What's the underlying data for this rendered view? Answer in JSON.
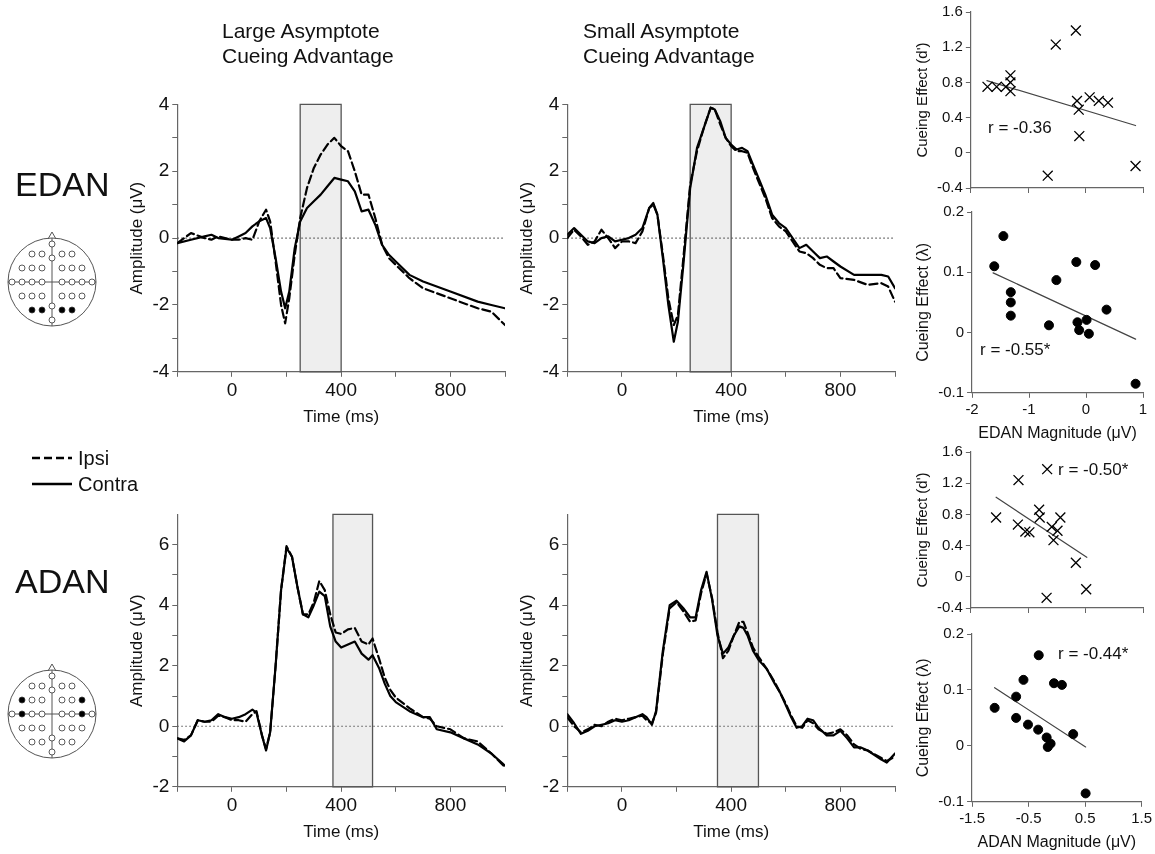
{
  "chart_data": [
    {
      "type": "line",
      "title": "Large Asymptote Cueing Advantage",
      "xlabel": "Time (ms)",
      "ylabel": "Amplitude (μV)",
      "annotations": [
        "EDAN"
      ],
      "legend": "bottom left",
      "marker": "none",
      "x": [
        -200,
        -150,
        -100,
        -75,
        -50,
        0,
        25,
        50,
        75,
        100,
        125,
        140,
        160,
        180,
        195,
        210,
        230,
        250,
        275,
        300,
        325,
        350,
        375,
        400,
        425,
        450,
        475,
        500,
        525,
        550,
        575,
        600,
        650,
        700,
        800,
        900,
        950,
        1000
      ],
      "series": [
        {
          "name": "Ipsi",
          "color": "#000000",
          "line_style": "dashed",
          "values": [
            -0.15,
            0.15,
            0.0,
            -0.05,
            0.05,
            -0.05,
            -0.05,
            0.0,
            -0.05,
            0.5,
            0.85,
            0.5,
            -0.7,
            -2.0,
            -2.55,
            -1.8,
            -0.5,
            0.6,
            1.5,
            2.1,
            2.5,
            2.8,
            3.0,
            2.75,
            2.6,
            2.0,
            1.3,
            1.3,
            0.6,
            -0.2,
            -0.6,
            -0.8,
            -1.2,
            -1.5,
            -1.8,
            -2.1,
            -2.2,
            -2.6
          ]
        },
        {
          "name": "Contra",
          "color": "#000000",
          "line_style": "solid",
          "values": [
            -0.15,
            -0.05,
            0.05,
            0.1,
            0.0,
            -0.05,
            0.05,
            0.15,
            0.35,
            0.5,
            0.6,
            0.3,
            -0.6,
            -1.6,
            -2.1,
            -1.6,
            -0.3,
            0.5,
            0.9,
            1.1,
            1.3,
            1.55,
            1.8,
            1.75,
            1.7,
            1.4,
            0.8,
            0.85,
            0.4,
            -0.2,
            -0.5,
            -0.7,
            -1.1,
            -1.3,
            -1.6,
            -1.9,
            -2.0,
            -2.1
          ]
        }
      ],
      "xlim": [
        -200,
        1000
      ],
      "xticks": [
        {
          "value": -200,
          "label": null
        },
        0,
        {
          "value": 200,
          "label": null
        },
        400,
        {
          "value": 600,
          "label": null
        },
        800,
        {
          "value": 1000,
          "label": null
        }
      ],
      "ylim": [
        -4,
        4
      ],
      "yticks": [
        -4,
        {
          "value": -3,
          "label": null
        },
        -2,
        {
          "value": -1,
          "label": null
        },
        0,
        {
          "value": 1,
          "label": null
        },
        2,
        {
          "value": 3,
          "label": null
        },
        4
      ],
      "bands": [
        {
          "axis": "x",
          "from": 250,
          "to": 400,
          "color": "#555555"
        }
      ],
      "ref_lines": [
        {
          "axis": "y",
          "value": 0,
          "line_style": "dotted",
          "color": "#555555"
        }
      ]
    },
    {
      "type": "line",
      "title": "Small Asymptote Cueing Advantage",
      "xlabel": "Time (ms)",
      "ylabel": "Amplitude (μV)",
      "marker": "none",
      "x": [
        -200,
        -175,
        -150,
        -125,
        -100,
        -75,
        -50,
        -25,
        0,
        25,
        50,
        75,
        100,
        115,
        130,
        150,
        170,
        190,
        205,
        225,
        250,
        275,
        300,
        325,
        340,
        360,
        380,
        400,
        420,
        440,
        460,
        480,
        500,
        525,
        550,
        575,
        600,
        625,
        650,
        675,
        700,
        725,
        750,
        775,
        800,
        850,
        900,
        950,
        975,
        1000
      ],
      "series": [
        {
          "color": "#000000",
          "line_style": "dashed",
          "values": [
            0.0,
            0.25,
            0.05,
            -0.2,
            -0.1,
            0.25,
            0.0,
            -0.3,
            -0.1,
            -0.1,
            -0.15,
            0.2,
            0.9,
            1.0,
            0.7,
            -0.5,
            -1.8,
            -2.6,
            -2.3,
            -0.6,
            1.6,
            2.6,
            3.3,
            3.9,
            3.85,
            3.4,
            3.0,
            2.75,
            2.6,
            2.6,
            2.55,
            2.1,
            1.7,
            1.2,
            0.6,
            0.35,
            0.2,
            -0.1,
            -0.4,
            -0.45,
            -0.6,
            -0.8,
            -0.9,
            -0.9,
            -1.2,
            -1.25,
            -1.4,
            -1.35,
            -1.45,
            -1.9
          ]
        },
        {
          "color": "#000000",
          "line_style": "solid",
          "values": [
            0.1,
            0.3,
            0.1,
            -0.1,
            -0.15,
            0.0,
            0.05,
            -0.1,
            -0.05,
            0.0,
            0.1,
            0.3,
            0.9,
            1.05,
            0.7,
            -0.6,
            -2.0,
            -3.1,
            -2.5,
            -0.8,
            1.5,
            2.7,
            3.3,
            3.9,
            3.85,
            3.5,
            3.0,
            2.8,
            2.65,
            2.7,
            2.6,
            2.2,
            1.8,
            1.3,
            0.7,
            0.45,
            0.3,
            0.0,
            -0.3,
            -0.2,
            -0.4,
            -0.6,
            -0.55,
            -0.7,
            -0.85,
            -1.1,
            -1.1,
            -1.1,
            -1.15,
            -1.5
          ]
        }
      ],
      "xlim": [
        -200,
        1000
      ],
      "xticks": [
        {
          "value": -200,
          "label": null
        },
        0,
        {
          "value": 200,
          "label": null
        },
        400,
        {
          "value": 600,
          "label": null
        },
        800,
        {
          "value": 1000,
          "label": null
        }
      ],
      "ylim": [
        -4,
        4
      ],
      "yticks": [
        -4,
        {
          "value": -3,
          "label": null
        },
        -2,
        {
          "value": -1,
          "label": null
        },
        0,
        {
          "value": 1,
          "label": null
        },
        2,
        {
          "value": 3,
          "label": null
        },
        4
      ],
      "bands": [
        {
          "axis": "x",
          "from": 250,
          "to": 400,
          "color": "#555555"
        }
      ],
      "ref_lines": [
        {
          "axis": "y",
          "value": 0,
          "line_style": "dotted",
          "color": "#555555"
        }
      ]
    },
    {
      "type": "scatter",
      "ylabel": "Cueing Effect (d')",
      "annotations": [
        "r = -0.36"
      ],
      "marker": "cross",
      "tick_labels": "y",
      "series": [
        {
          "color": "#000000",
          "x": [
            -1.71,
            -1.55,
            -1.39,
            -1.31,
            -1.31,
            -1.31,
            -0.52,
            -0.17,
            -0.15,
            -0.12,
            -0.11,
            0.07,
            0.23,
            0.39,
            -0.66,
            0.87
          ],
          "values": [
            0.75,
            0.75,
            0.75,
            0.88,
            0.8,
            0.7,
            1.23,
            1.39,
            0.59,
            0.49,
            0.19,
            0.63,
            0.59,
            0.57,
            -0.26,
            -0.15
          ]
        },
        {
          "type": "line",
          "marker": "none",
          "color": "#444444",
          "x": [
            -1.72,
            0.87
          ],
          "values": [
            0.82,
            0.31
          ]
        }
      ],
      "xlim": [
        -2,
        1
      ],
      "xticks": [
        -2,
        -1,
        0,
        1
      ],
      "ylim": [
        -0.4,
        1.6
      ],
      "yticks": [
        -0.4,
        0,
        0.4,
        0.8,
        1.2,
        1.6
      ]
    },
    {
      "type": "scatter",
      "xlabel": "EDAN Magnitude (μV)",
      "ylabel": "Cueing Effect (λ)",
      "annotations": [
        "r = -0.55*"
      ],
      "marker": "circle",
      "series": [
        {
          "color": "#000000",
          "x": [
            -1.61,
            -1.45,
            -1.32,
            -1.32,
            -1.32,
            -0.65,
            -0.52,
            -0.17,
            -0.15,
            -0.12,
            0.01,
            0.05,
            0.16,
            0.36,
            0.87
          ],
          "values": [
            0.11,
            0.16,
            0.067,
            0.05,
            0.028,
            0.012,
            0.087,
            0.117,
            0.017,
            0.004,
            0.021,
            -0.002,
            0.112,
            0.038,
            -0.085
          ]
        },
        {
          "type": "line",
          "marker": "none",
          "color": "#444444",
          "x": [
            -1.63,
            0.87
          ],
          "values": [
            0.099,
            -0.011
          ]
        }
      ],
      "xlim": [
        -2,
        1
      ],
      "xticks": [
        -2,
        -1,
        0,
        1
      ],
      "ylim": [
        -0.1,
        0.2
      ],
      "yticks": [
        -0.1,
        0,
        0.1,
        0.2
      ]
    },
    {
      "type": "line",
      "xlabel": "Time (ms)",
      "ylabel": "Amplitude (μV)",
      "annotations": [
        "ADAN"
      ],
      "marker": "none",
      "x": [
        -200,
        -175,
        -150,
        -125,
        -100,
        -75,
        -50,
        -25,
        0,
        25,
        50,
        75,
        90,
        110,
        125,
        140,
        160,
        180,
        200,
        220,
        240,
        260,
        280,
        300,
        320,
        340,
        360,
        380,
        400,
        425,
        450,
        475,
        500,
        515,
        540,
        560,
        580,
        600,
        650,
        700,
        725,
        750,
        800,
        850,
        900,
        950,
        1000
      ],
      "series": [
        {
          "color": "#000000",
          "line_style": "dashed",
          "values": [
            -0.4,
            -0.45,
            -0.3,
            0.2,
            0.15,
            0.15,
            0.35,
            0.3,
            0.2,
            0.2,
            0.15,
            0.4,
            0.5,
            -0.3,
            -0.75,
            -0.2,
            2.0,
            4.5,
            5.95,
            5.6,
            4.6,
            3.7,
            3.7,
            4.1,
            4.8,
            4.5,
            3.7,
            3.1,
            3.05,
            3.2,
            3.25,
            2.8,
            2.7,
            2.9,
            2.2,
            1.6,
            1.2,
            0.95,
            0.6,
            0.3,
            0.25,
            0.0,
            -0.1,
            -0.4,
            -0.5,
            -0.9,
            -1.35
          ]
        },
        {
          "color": "#000000",
          "line_style": "solid",
          "values": [
            -0.4,
            -0.5,
            -0.3,
            0.2,
            0.15,
            0.2,
            0.4,
            0.3,
            0.25,
            0.3,
            0.4,
            0.55,
            0.45,
            -0.3,
            -0.8,
            -0.2,
            2.0,
            4.5,
            5.9,
            5.6,
            4.6,
            3.7,
            3.6,
            4.0,
            4.45,
            4.3,
            3.3,
            2.8,
            2.6,
            2.7,
            2.8,
            2.4,
            2.2,
            2.35,
            1.9,
            1.4,
            1.0,
            0.8,
            0.5,
            0.3,
            0.3,
            -0.1,
            -0.2,
            -0.4,
            -0.6,
            -0.9,
            -1.3
          ]
        }
      ],
      "xlim": [
        -200,
        1000
      ],
      "xticks": [
        {
          "value": -200,
          "label": null
        },
        0,
        {
          "value": 200,
          "label": null
        },
        400,
        {
          "value": 600,
          "label": null
        },
        800,
        {
          "value": 1000,
          "label": null
        }
      ],
      "ylim": [
        -2,
        7
      ],
      "yticks": [
        -2,
        {
          "value": -1,
          "label": null
        },
        0,
        {
          "value": 1,
          "label": null
        },
        2,
        {
          "value": 3,
          "label": null
        },
        4,
        {
          "value": 5,
          "label": null
        },
        6
      ],
      "bands": [
        {
          "axis": "x",
          "from": 370,
          "to": 515,
          "color": "#555555"
        }
      ],
      "ref_lines": [
        {
          "axis": "y",
          "value": 0,
          "line_style": "dotted",
          "color": "#555555"
        }
      ]
    },
    {
      "type": "line",
      "xlabel": "Time (ms)",
      "ylabel": "Amplitude (μV)",
      "marker": "none",
      "x": [
        -200,
        -175,
        -150,
        -125,
        -100,
        -75,
        -50,
        -25,
        0,
        25,
        50,
        75,
        90,
        110,
        125,
        150,
        175,
        200,
        225,
        250,
        270,
        290,
        310,
        330,
        350,
        370,
        390,
        410,
        430,
        445,
        460,
        480,
        500,
        530,
        560,
        580,
        600,
        620,
        640,
        660,
        680,
        700,
        720,
        750,
        775,
        800,
        825,
        850,
        875,
        900,
        950,
        970,
        1000
      ],
      "series": [
        {
          "color": "#000000",
          "line_style": "dashed",
          "values": [
            0.3,
            0.0,
            -0.2,
            -0.1,
            0.05,
            0.0,
            0.15,
            0.25,
            0.2,
            0.25,
            0.3,
            0.35,
            0.2,
            0.1,
            0.45,
            2.4,
            3.9,
            4.1,
            3.8,
            3.45,
            3.5,
            4.4,
            5.05,
            4.25,
            3.1,
            2.25,
            2.5,
            3.0,
            3.45,
            3.45,
            3.1,
            2.6,
            2.3,
            1.9,
            1.45,
            1.1,
            0.75,
            0.35,
            0.0,
            -0.05,
            0.2,
            0.1,
            -0.1,
            -0.25,
            -0.2,
            -0.1,
            -0.3,
            -0.6,
            -0.75,
            -0.8,
            -1.05,
            -1.15,
            -1.0
          ]
        },
        {
          "color": "#000000",
          "line_style": "solid",
          "values": [
            0.4,
            0.1,
            -0.25,
            -0.15,
            0.0,
            0.05,
            0.1,
            0.2,
            0.15,
            0.2,
            0.3,
            0.4,
            0.3,
            0.05,
            0.5,
            2.5,
            4.0,
            4.15,
            3.9,
            3.6,
            3.6,
            4.5,
            5.1,
            4.2,
            3.0,
            2.4,
            2.6,
            3.0,
            3.3,
            3.25,
            3.0,
            2.5,
            2.2,
            1.9,
            1.4,
            1.1,
            0.7,
            0.3,
            -0.05,
            0.0,
            0.25,
            0.2,
            -0.05,
            -0.3,
            -0.3,
            -0.15,
            -0.4,
            -0.7,
            -0.7,
            -0.8,
            -1.1,
            -1.2,
            -0.9
          ]
        }
      ],
      "xlim": [
        -200,
        1000
      ],
      "xticks": [
        {
          "value": -200,
          "label": null
        },
        0,
        {
          "value": 200,
          "label": null
        },
        400,
        {
          "value": 600,
          "label": null
        },
        800,
        {
          "value": 1000,
          "label": null
        }
      ],
      "ylim": [
        -2,
        7
      ],
      "yticks": [
        -2,
        {
          "value": -1,
          "label": null
        },
        0,
        {
          "value": 1,
          "label": null
        },
        2,
        {
          "value": 3,
          "label": null
        },
        4,
        {
          "value": 5,
          "label": null
        },
        6
      ],
      "bands": [
        {
          "axis": "x",
          "from": 350,
          "to": 500,
          "color": "#555555"
        }
      ],
      "ref_lines": [
        {
          "axis": "y",
          "value": 0,
          "line_style": "dotted",
          "color": "#555555"
        }
      ]
    },
    {
      "type": "scatter",
      "ylabel": "Cueing Effect (d')",
      "annotations": [
        "r = -0.50*"
      ],
      "marker": "cross",
      "tick_labels": "y",
      "series": [
        {
          "color": "#000000",
          "x": [
            -1.06,
            -0.67,
            -0.68,
            -0.55,
            -0.48,
            -0.31,
            -0.3,
            -0.17,
            -0.09,
            -0.06,
            0.01,
            0.06,
            0.33,
            0.51,
            -0.18
          ],
          "values": [
            0.76,
            1.24,
            0.67,
            0.58,
            0.57,
            0.86,
            0.76,
            1.38,
            0.64,
            0.47,
            0.59,
            0.76,
            0.18,
            -0.16,
            -0.27
          ]
        },
        {
          "type": "line",
          "marker": "none",
          "color": "#444444",
          "x": [
            -1.06,
            0.52
          ],
          "values": [
            1.02,
            0.25
          ]
        }
      ],
      "xlim": [
        -1.5,
        1.5
      ],
      "xticks": [
        -1.5,
        -0.5,
        0.5,
        1.5
      ],
      "ylim": [
        -0.4,
        1.6
      ],
      "yticks": [
        -0.4,
        0,
        0.4,
        0.8,
        1.2,
        1.6
      ]
    },
    {
      "type": "scatter",
      "xlabel": "ADAN Magnitude (μV)",
      "ylabel": "Cueing Effect (λ)",
      "annotations": [
        "r = -0.44*"
      ],
      "marker": "circle",
      "series": [
        {
          "color": "#000000",
          "x": [
            -1.1,
            -0.72,
            -0.72,
            -0.59,
            -0.51,
            -0.33,
            -0.32,
            -0.18,
            -0.16,
            -0.11,
            -0.05,
            0.09,
            0.29,
            0.51
          ],
          "values": [
            0.068,
            0.088,
            0.05,
            0.118,
            0.038,
            0.029,
            0.162,
            0.015,
            -0.002,
            0.004,
            0.112,
            0.109,
            0.021,
            -0.085
          ]
        },
        {
          "type": "line",
          "marker": "none",
          "color": "#444444",
          "x": [
            -1.1,
            0.51
          ],
          "values": [
            0.104,
            -0.002
          ]
        }
      ],
      "xlim": [
        -1.5,
        1.5
      ],
      "xticks": [
        -1.5,
        -0.5,
        0.5,
        1.5
      ],
      "ylim": [
        -0.1,
        0.2
      ],
      "yticks": [
        -0.1,
        0,
        0.1,
        0.2
      ]
    }
  ]
}
